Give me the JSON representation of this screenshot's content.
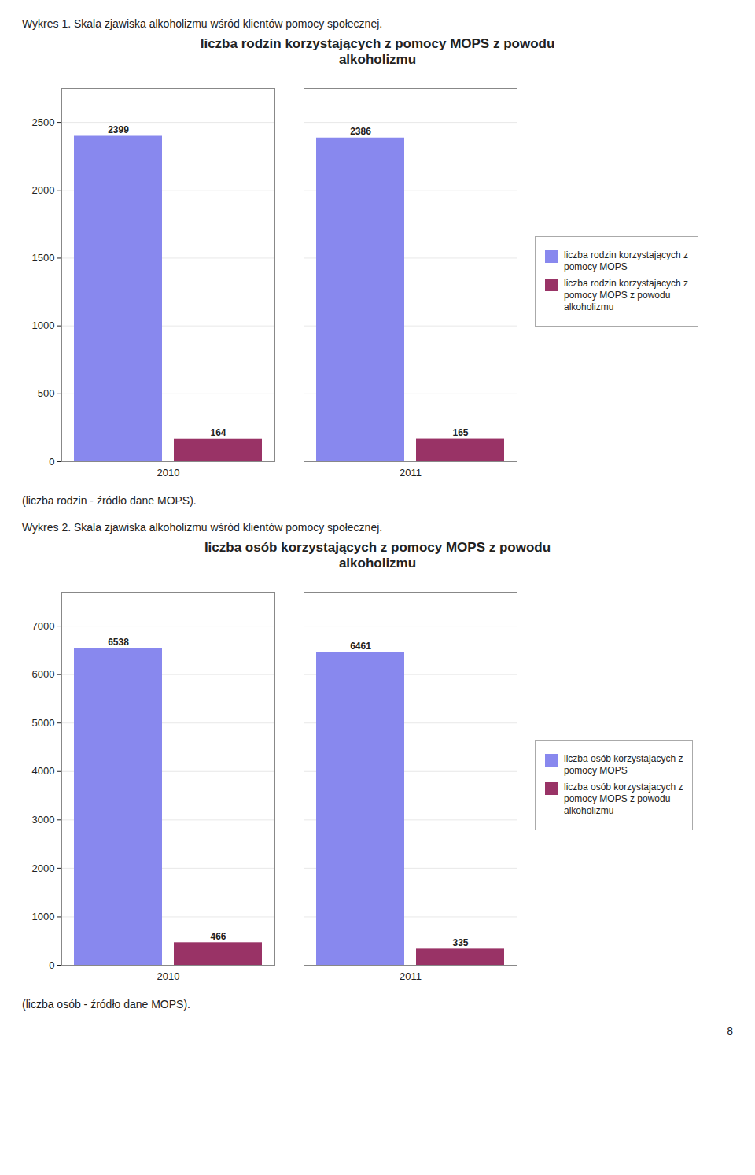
{
  "chart_data": [
    {
      "type": "bar",
      "subtitle": "Wykres 1. Skala zjawiska alkoholizmu wśród klientów pomocy społecznej.",
      "title": "liczba rodzin korzystających z pomocy MOPS z powodu\nalkoholizmu",
      "caption": "(liczba rodzin - źródło dane MOPS).",
      "categories": [
        "2010",
        "2011"
      ],
      "series": [
        {
          "name": "liczba rodzin korzystających z\npomocy MOPS",
          "color": "#8888ee",
          "values": [
            2399,
            2386
          ]
        },
        {
          "name": "liczba rodzin korzystajacych z\npomocy MOPS z powodu\nalkoholizmu",
          "color": "#993366",
          "values": [
            164,
            165
          ]
        }
      ],
      "ylim": [
        0,
        2750
      ],
      "yticks": [
        0,
        500,
        1000,
        1500,
        2000,
        2500
      ],
      "grid": true,
      "data_labels": true,
      "legend": "right"
    },
    {
      "type": "bar",
      "subtitle": "Wykres 2. Skala zjawiska alkoholizmu wśród klientów pomocy społecznej.",
      "title": "liczba osób korzystających z pomocy MOPS z powodu\nalkoholizmu",
      "caption": "(liczba osób - źródło dane MOPS).",
      "categories": [
        "2010",
        "2011"
      ],
      "series": [
        {
          "name": "liczba osób korzystajacych z\npomocy MOPS",
          "color": "#8888ee",
          "values": [
            6538,
            6461
          ]
        },
        {
          "name": "liczba osób korzystajacych z\npomocy MOPS z powodu\nalkoholizmu",
          "color": "#993366",
          "values": [
            466,
            335
          ]
        }
      ],
      "ylim": [
        0,
        7700
      ],
      "yticks": [
        0,
        1000,
        2000,
        3000,
        4000,
        5000,
        6000,
        7000
      ],
      "grid": true,
      "data_labels": true,
      "legend": "right"
    }
  ],
  "page_number": "8"
}
